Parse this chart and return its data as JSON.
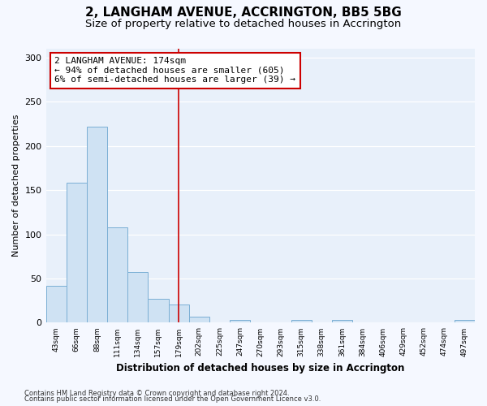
{
  "title": "2, LANGHAM AVENUE, ACCRINGTON, BB5 5BG",
  "subtitle": "Size of property relative to detached houses in Accrington",
  "xlabel": "Distribution of detached houses by size in Accrington",
  "ylabel": "Number of detached properties",
  "categories": [
    "43sqm",
    "66sqm",
    "88sqm",
    "111sqm",
    "134sqm",
    "157sqm",
    "179sqm",
    "202sqm",
    "225sqm",
    "247sqm",
    "270sqm",
    "293sqm",
    "315sqm",
    "338sqm",
    "361sqm",
    "384sqm",
    "406sqm",
    "429sqm",
    "452sqm",
    "474sqm",
    "497sqm"
  ],
  "values": [
    42,
    158,
    222,
    108,
    57,
    27,
    21,
    7,
    0,
    3,
    0,
    0,
    3,
    0,
    3,
    0,
    0,
    0,
    0,
    0,
    3
  ],
  "bar_color": "#cfe2f3",
  "bar_edge_color": "#7bafd4",
  "vline_x": 6,
  "vline_color": "#cc0000",
  "annotation_text": "2 LANGHAM AVENUE: 174sqm\n← 94% of detached houses are smaller (605)\n6% of semi-detached houses are larger (39) →",
  "annotation_box_color": "#ffffff",
  "annotation_box_edge_color": "#cc0000",
  "ylim": [
    0,
    310
  ],
  "yticks": [
    0,
    50,
    100,
    150,
    200,
    250,
    300
  ],
  "footer_line1": "Contains HM Land Registry data © Crown copyright and database right 2024.",
  "footer_line2": "Contains public sector information licensed under the Open Government Licence v3.0.",
  "plot_bg_color": "#e8f0fa",
  "fig_bg_color": "#f5f8ff",
  "title_fontsize": 11,
  "subtitle_fontsize": 9.5,
  "annotation_fontsize": 8
}
